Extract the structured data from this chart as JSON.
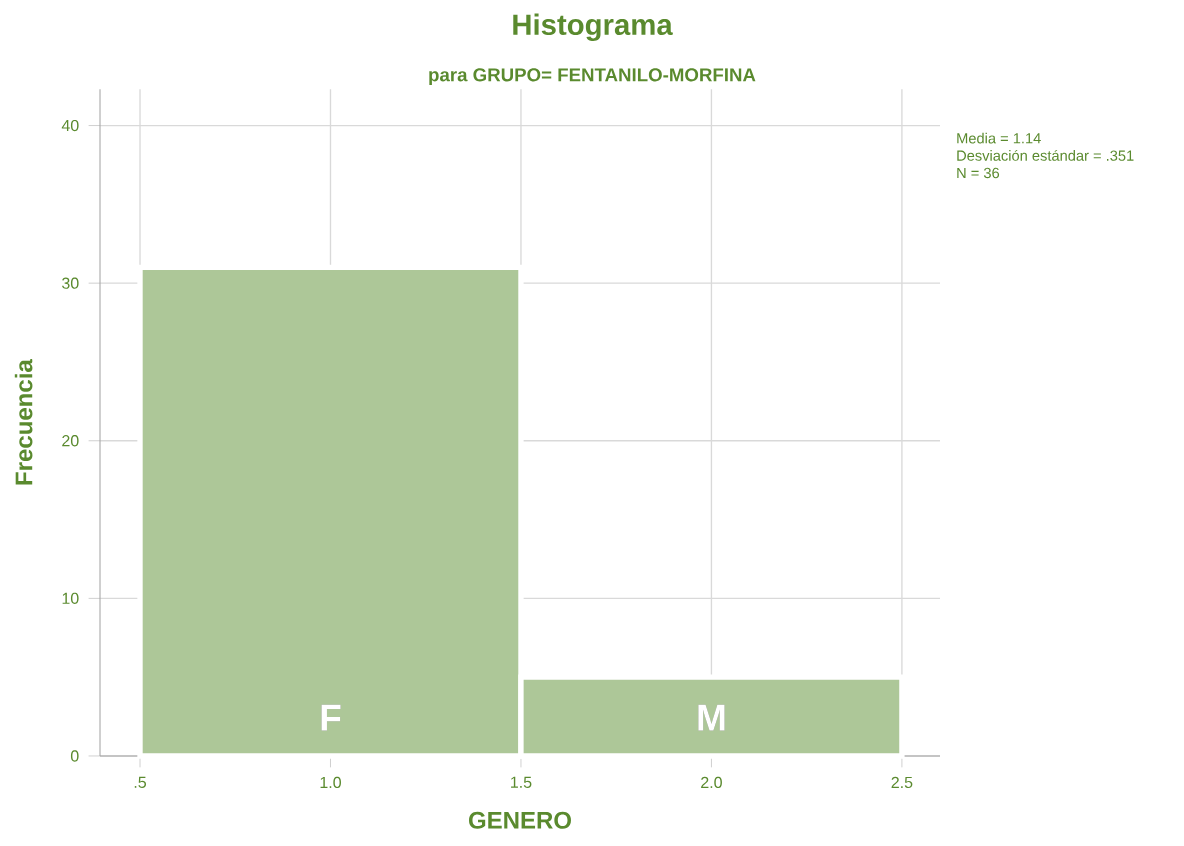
{
  "chart_data": {
    "type": "histogram",
    "title": "Histograma",
    "subtitle": "para GRUPO= FENTANILO-MORFINA",
    "xlabel": "GENERO",
    "ylabel": "Frecuencia",
    "bins": [
      0.5,
      1.5,
      2.5
    ],
    "values": [
      31,
      5
    ],
    "color": "#adc798",
    "xlim": [
      0.395,
      2.6
    ],
    "ylim": [
      0,
      42.3
    ],
    "xticks": [
      {
        "value": 0.5,
        "label": ".5"
      },
      {
        "value": 1.0,
        "label": "1.0"
      },
      {
        "value": 1.5,
        "label": "1.5"
      },
      {
        "value": 2.0,
        "label": "2.0"
      },
      {
        "value": 2.5,
        "label": "2.5"
      }
    ],
    "yticks": [
      0,
      10,
      20,
      30,
      40
    ],
    "grid": true,
    "annotations": [
      "F",
      "M",
      "Media = 1.14",
      "Desviación estándar = .351",
      "N = 36"
    ]
  }
}
